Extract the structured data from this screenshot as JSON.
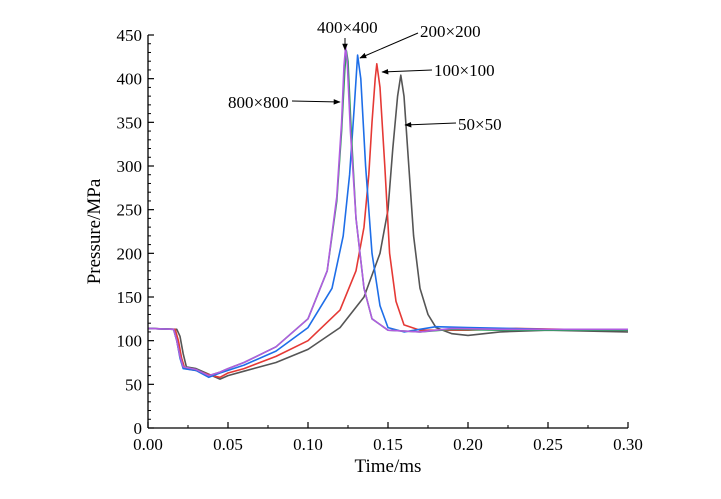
{
  "chart_data": {
    "type": "line",
    "xlabel": "Time/ms",
    "ylabel": "Pressure/MPa",
    "xlim": [
      0,
      0.3
    ],
    "ylim": [
      0,
      450
    ],
    "x_ticks": [
      "0.00",
      "0.05",
      "0.10",
      "0.15",
      "0.20",
      "0.25",
      "0.30"
    ],
    "y_ticks": [
      "0",
      "50",
      "100",
      "150",
      "200",
      "250",
      "300",
      "350",
      "400",
      "450"
    ],
    "grid": false,
    "series": [
      {
        "name": "50×50",
        "color": "#555555",
        "x": [
          0,
          0.018,
          0.02,
          0.022,
          0.024,
          0.03,
          0.04,
          0.045,
          0.05,
          0.06,
          0.08,
          0.1,
          0.12,
          0.135,
          0.145,
          0.15,
          0.153,
          0.156,
          0.158,
          0.16,
          0.163,
          0.166,
          0.17,
          0.175,
          0.18,
          0.19,
          0.2,
          0.22,
          0.25,
          0.3
        ],
        "y": [
          114,
          113,
          105,
          85,
          70,
          68,
          60,
          56,
          60,
          65,
          75,
          90,
          115,
          150,
          200,
          250,
          320,
          380,
          404,
          380,
          300,
          220,
          160,
          130,
          115,
          108,
          106,
          110,
          112,
          110
        ]
      },
      {
        "name": "100×100",
        "color": "#e53935",
        "x": [
          0,
          0.017,
          0.019,
          0.021,
          0.023,
          0.03,
          0.04,
          0.045,
          0.05,
          0.06,
          0.08,
          0.1,
          0.12,
          0.13,
          0.135,
          0.138,
          0.14,
          0.142,
          0.143,
          0.145,
          0.148,
          0.151,
          0.155,
          0.16,
          0.17,
          0.18,
          0.2,
          0.23,
          0.26,
          0.3
        ],
        "y": [
          114,
          113,
          100,
          80,
          68,
          66,
          60,
          58,
          63,
          68,
          82,
          100,
          135,
          180,
          230,
          290,
          350,
          400,
          417,
          390,
          300,
          200,
          145,
          118,
          112,
          112,
          112,
          114,
          113,
          113
        ]
      },
      {
        "name": "200×200",
        "color": "#1e6ee8",
        "x": [
          0,
          0.016,
          0.018,
          0.02,
          0.022,
          0.03,
          0.038,
          0.045,
          0.05,
          0.06,
          0.08,
          0.1,
          0.115,
          0.122,
          0.126,
          0.129,
          0.131,
          0.133,
          0.136,
          0.14,
          0.145,
          0.15,
          0.16,
          0.18,
          0.2,
          0.25,
          0.3
        ],
        "y": [
          114,
          113,
          100,
          80,
          68,
          66,
          58,
          63,
          66,
          72,
          88,
          115,
          160,
          220,
          290,
          370,
          427,
          400,
          300,
          200,
          140,
          115,
          110,
          116,
          115,
          113,
          113
        ]
      },
      {
        "name": "400×400",
        "color": "#2e9e5b",
        "x": [
          0,
          0.016,
          0.018,
          0.02,
          0.022,
          0.03,
          0.038,
          0.045,
          0.05,
          0.06,
          0.08,
          0.1,
          0.112,
          0.118,
          0.121,
          0.123,
          0.124,
          0.125,
          0.127,
          0.13,
          0.135,
          0.14,
          0.15,
          0.17,
          0.19,
          0.22,
          0.26,
          0.3
        ],
        "y": [
          114,
          113,
          100,
          82,
          70,
          67,
          60,
          64,
          68,
          75,
          93,
          125,
          180,
          260,
          340,
          410,
          432,
          420,
          340,
          240,
          160,
          125,
          112,
          110,
          113,
          112,
          112,
          112
        ]
      },
      {
        "name": "800×800",
        "color": "#b05ce0",
        "x": [
          0,
          0.016,
          0.018,
          0.02,
          0.022,
          0.03,
          0.038,
          0.045,
          0.05,
          0.06,
          0.08,
          0.1,
          0.112,
          0.118,
          0.121,
          0.1225,
          0.1235,
          0.1245,
          0.1265,
          0.13,
          0.135,
          0.14,
          0.15,
          0.17,
          0.19,
          0.22,
          0.26,
          0.3
        ],
        "y": [
          114,
          113,
          100,
          82,
          70,
          67,
          60,
          64,
          68,
          75,
          93,
          125,
          180,
          265,
          350,
          415,
          436,
          420,
          340,
          240,
          160,
          125,
          112,
          110,
          114,
          113,
          113,
          113
        ]
      }
    ],
    "annotations": [
      {
        "text": "400×400",
        "series": "400×400",
        "x": 0.1225,
        "y": 432
      },
      {
        "text": "200×200",
        "series": "200×200",
        "x": 0.131,
        "y": 427
      },
      {
        "text": "100×100",
        "series": "100×100",
        "x": 0.143,
        "y": 417
      },
      {
        "text": "800×800",
        "series": "800×800",
        "x": 0.1225,
        "y": 418
      },
      {
        "text": "50×50",
        "series": "50×50",
        "x": 0.158,
        "y": 392
      }
    ]
  }
}
